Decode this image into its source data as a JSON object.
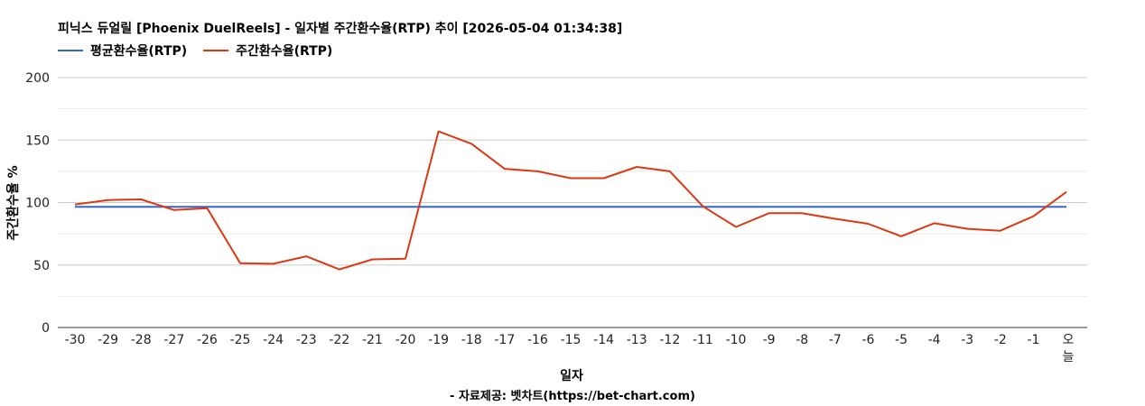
{
  "title": "피닉스 듀얼릴 [Phoenix DuelReels] - 일자별 주간환수율(RTP) 추이 [2026-05-04 01:34:38]",
  "footer": "- 자료제공: 벳차트(https://bet-chart.com)",
  "chart_data": {
    "type": "line",
    "title": "피닉스 듀얼릴 [Phoenix DuelReels] - 일자별 주간환수율(RTP) 추이 [2026-05-04 01:34:38]",
    "xlabel": "일자",
    "ylabel": "주간환수율 %",
    "ylim": [
      0,
      200
    ],
    "yticks": [
      0,
      50,
      100,
      150,
      200
    ],
    "grid": true,
    "legend_position": "top-left",
    "categories": [
      "-30",
      "-29",
      "-28",
      "-27",
      "-26",
      "-25",
      "-24",
      "-23",
      "-22",
      "-21",
      "-20",
      "-19",
      "-18",
      "-17",
      "-16",
      "-15",
      "-14",
      "-13",
      "-12",
      "-11",
      "-10",
      "-9",
      "-8",
      "-7",
      "-6",
      "-5",
      "-4",
      "-3",
      "-2",
      "-1",
      "오늘"
    ],
    "series": [
      {
        "name": "평균환수율(RTP)",
        "color": "#3366cc",
        "values": [
          96.5,
          96.5,
          96.5,
          96.5,
          96.5,
          96.5,
          96.5,
          96.5,
          96.5,
          96.5,
          96.5,
          96.5,
          96.5,
          96.5,
          96.5,
          96.5,
          96.5,
          96.5,
          96.5,
          96.5,
          96.5,
          96.5,
          96.5,
          96.5,
          96.5,
          96.5,
          96.5,
          96.5,
          96.5,
          96.5,
          96.5
        ]
      },
      {
        "name": "주간환수율(RTP)",
        "color": "#dc3912",
        "values": [
          98.5,
          102,
          102.5,
          94,
          95.5,
          51.5,
          51,
          57,
          46.5,
          54.5,
          55,
          157,
          147,
          127,
          125,
          119.5,
          119.5,
          128.5,
          125,
          97,
          80.5,
          91.5,
          91.5,
          87,
          83,
          73,
          83.5,
          79,
          77.5,
          89,
          108.5
        ]
      }
    ]
  }
}
